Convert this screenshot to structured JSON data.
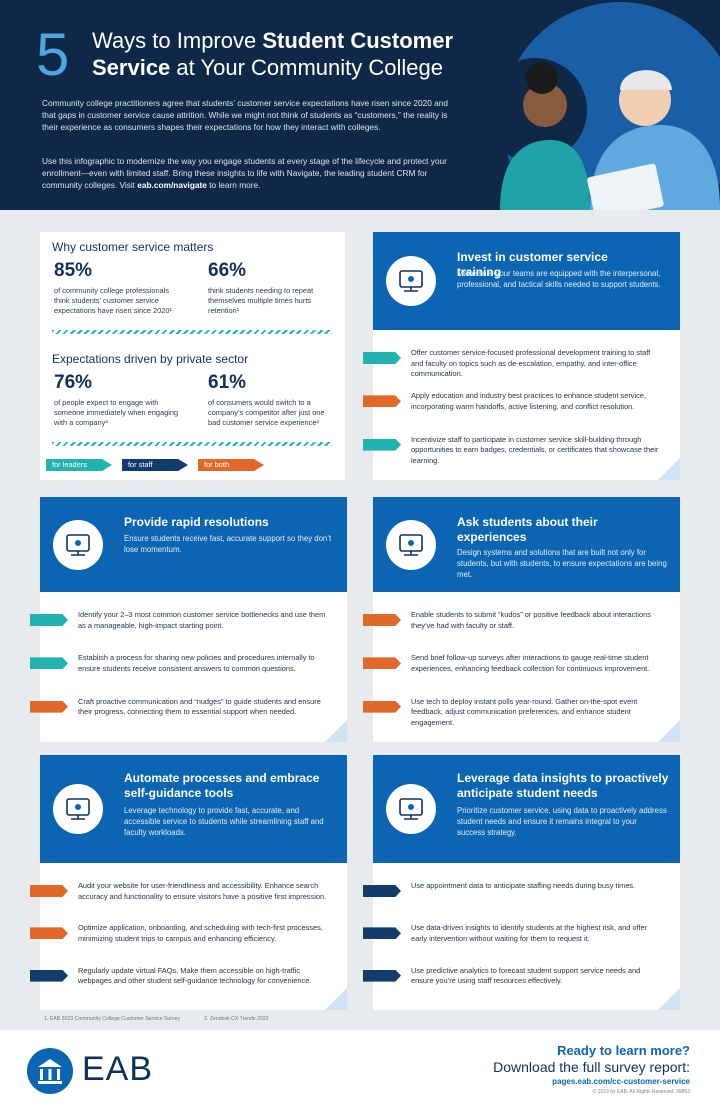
{
  "header": {
    "number": "5",
    "title": [
      "Ways to Improve ",
      "Student Customer Service",
      " at Your Community College"
    ],
    "intro_1": "Community college practitioners agree that students’ customer service expectations have risen since 2020 and that gaps in customer service cause attrition. While we might not think of students as “customers,” the reality is their experience as consumers shapes their expectations for how they interact with colleges.",
    "intro_2": [
      "Use this infographic to modernize the way you engage students at every stage of the lifecycle and protect your enrollment—even with limited staff. Bring these insights to life with Navigate, the leading student CRM for community colleges. Visit ",
      "eab.com/navigate",
      " to learn more."
    ]
  },
  "stats": [
    {
      "heading": "Why customer service matters",
      "items": [
        {
          "value": "85%",
          "text": "of community college professionals think students’ customer service expectations have risen since 2020¹"
        },
        {
          "value": "66%",
          "text": "think students needing to repeat themselves multiple times hurts retention¹"
        }
      ]
    },
    {
      "heading": "Expectations driven by private sector",
      "items": [
        {
          "value": "76%",
          "text": "of people expect to engage with someone immediately when engaging with a company²"
        },
        {
          "value": "61%",
          "text": "of consumers would switch to a company’s competitor after just one bad customer service experience²"
        }
      ]
    }
  ],
  "legend": [
    {
      "label": "for leaders",
      "color": "#22b3ae"
    },
    {
      "label": "for staff",
      "color": "#123d6b"
    },
    {
      "label": "for both",
      "color": "#e0692a"
    }
  ],
  "cards": [
    {
      "title": "Invest in customer service training",
      "description": "Make sure your teams are equipped with the interpersonal, professional, and tactical skills needed to support students.",
      "items": [
        {
          "text": "Offer customer service-focused professional development training to staff and faculty on topics such as de-escalation, empathy, and inter-office communication.",
          "color": "#22b3ae"
        },
        {
          "text": "Apply education and industry best practices to enhance student service, incorporating warm handoffs, active listening, and conflict resolution.",
          "color": "#e0692a"
        },
        {
          "text": "Incentivize staff to participate in customer service skill-building through opportunities to earn badges, credentials, or certificates that showcase their learning.",
          "color": "#22b3ae"
        }
      ]
    },
    {
      "title": "Provide rapid resolutions",
      "description": "Ensure students receive fast, accurate support so they don’t lose momentum.",
      "items": [
        {
          "text": "Identify your 2–3 most common customer service bottlenecks and use them as a manageable, high-impact starting point.",
          "color": "#22b3ae"
        },
        {
          "text": "Establish a process for sharing new policies and procedures internally to ensure students receive consistent answers to common questions.",
          "color": "#22b3ae"
        },
        {
          "text": "Craft proactive communication and “nudges” to guide students and ensure their progress, connecting them to essential support when needed.",
          "color": "#e0692a"
        }
      ]
    },
    {
      "title": "Ask students about their experiences",
      "description": "Design systems and solutions that are built not only for students, but with students, to ensure expectations are being met.",
      "items": [
        {
          "text": "Enable students to submit “kudos” or positive feedback about interactions they’ve had with faculty or staff.",
          "color": "#e0692a"
        },
        {
          "text": "Send brief follow-up surveys after interactions to gauge real-time student experiences, enhancing feedback collection for continuous improvement.",
          "color": "#e0692a"
        },
        {
          "text": "Use tech to deploy instant polls year-round. Gather on-the-spot event feedback, adjust communication preferences, and enhance student engagement.",
          "color": "#e0692a"
        }
      ]
    },
    {
      "title": "Automate processes and embrace self-guidance tools",
      "description": "Leverage technology to provide fast, accurate, and accessible service to students while streamlining staff and faculty workloads.",
      "items": [
        {
          "text": "Audit your website for user-friendliness and accessibility. Enhance search accuracy and functionality to ensure visitors have a positive first impression.",
          "color": "#e0692a"
        },
        {
          "text": "Optimize application, onboarding, and scheduling with tech-first processes, minimizing student trips to campus and enhancing efficiency.",
          "color": "#e0692a"
        },
        {
          "text": "Regularly update virtual FAQs. Make them accessible on high-traffic webpages and other student self-guidance technology for convenience.",
          "color": "#123d6b"
        }
      ]
    },
    {
      "title": "Leverage data insights to proactively anticipate student needs",
      "description": "Prioritize customer service, using data to proactively address student needs and ensure it remains integral to your success strategy.",
      "items": [
        {
          "text": "Use appointment data to anticipate staffing needs during busy times.",
          "color": "#123d6b"
        },
        {
          "text": "Use data-driven insights to identify students at the highest risk, and offer early intervention without waiting for them to request it.",
          "color": "#123d6b"
        },
        {
          "text": "Use predictive analytics to forecast student support service needs and ensure you’re using staff resources effectively.",
          "color": "#123d6b"
        }
      ]
    }
  ],
  "footnotes": [
    "1.  EAB 2023 Community College Customer Service Survey",
    "2.  Zendesk CX Trends 2022"
  ],
  "footer": {
    "logo": "EAB",
    "cta": "Ready to learn more?",
    "download": "Download the full survey report:",
    "link": "pages.eab.com/cc-customer-service",
    "copyright": "© 2023 by EAB. All Rights Reserved. 39853"
  }
}
